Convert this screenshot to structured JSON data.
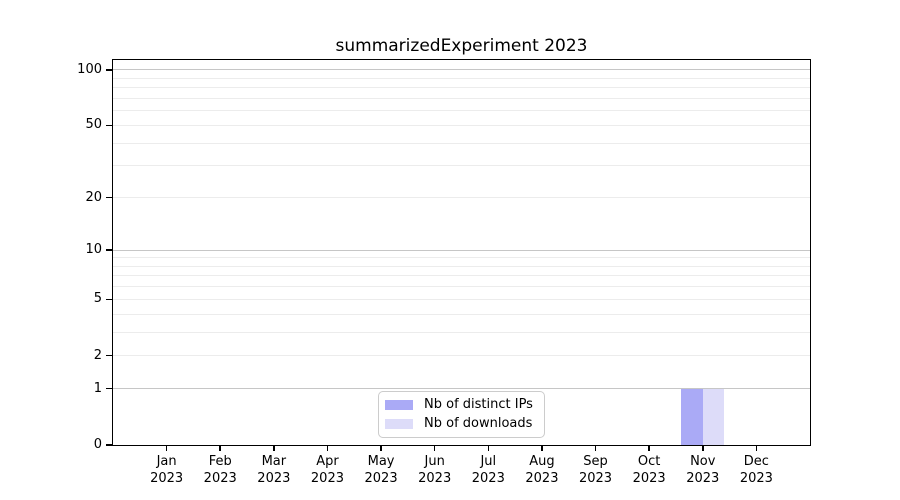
{
  "chart_data": {
    "type": "bar",
    "title": "summarizedExperiment 2023",
    "categories": [
      "Jan 2023",
      "Feb 2023",
      "Mar 2023",
      "Apr 2023",
      "May 2023",
      "Jun 2023",
      "Jul 2023",
      "Aug 2023",
      "Sep 2023",
      "Oct 2023",
      "Nov 2023",
      "Dec 2023"
    ],
    "series": [
      {
        "name": "Nb of distinct IPs",
        "color": "#aaaaf6",
        "values": [
          0,
          0,
          0,
          0,
          0,
          0,
          0,
          0,
          0,
          0,
          1,
          0
        ]
      },
      {
        "name": "Nb of downloads",
        "color": "#dddcf9",
        "values": [
          0,
          0,
          0,
          0,
          0,
          0,
          0,
          0,
          0,
          0,
          1,
          0
        ]
      }
    ],
    "xlabel": "",
    "ylabel": "",
    "y_scale": "log1p",
    "ylim": [
      0,
      113
    ],
    "y_ticks_labeled": [
      0,
      1,
      2,
      5,
      10,
      20,
      50,
      100
    ],
    "y_grid_major": [
      1,
      10,
      100
    ],
    "y_grid_minor": [
      2,
      3,
      4,
      5,
      6,
      7,
      8,
      9,
      20,
      30,
      40,
      50,
      60,
      70,
      80,
      90
    ],
    "grid": true,
    "legend_position": "lower center"
  },
  "colors": {
    "background": "#ffffff",
    "frame": "#000000",
    "grid_major": "#c6c6c6",
    "grid_minor": "#ececec",
    "tick": "#000000",
    "text": "#000000",
    "legend_border": "#cccccc",
    "legend_background": "#ffffff"
  }
}
